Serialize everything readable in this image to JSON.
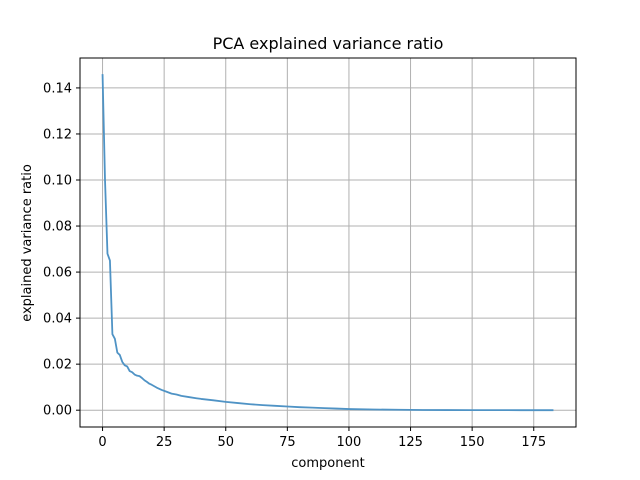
{
  "chart_data": {
    "type": "line",
    "title": "PCA explained variance ratio",
    "xlabel": "component",
    "ylabel": "explained variance ratio",
    "xlim": [
      -9.15,
      192.15
    ],
    "ylim": [
      -0.0073,
      0.153
    ],
    "xticks": [
      0,
      25,
      50,
      75,
      100,
      125,
      150,
      175
    ],
    "xtick_labels": [
      "0",
      "25",
      "50",
      "75",
      "100",
      "125",
      "150",
      "175"
    ],
    "yticks": [
      0.0,
      0.02,
      0.04,
      0.06,
      0.08,
      0.1,
      0.12,
      0.14
    ],
    "ytick_labels": [
      "0.00",
      "0.02",
      "0.04",
      "0.06",
      "0.08",
      "0.10",
      "0.12",
      "0.14"
    ],
    "grid": true,
    "line_color": "#4f93c5",
    "series": [
      {
        "x": [
          0,
          1,
          2,
          3,
          4,
          5,
          6,
          7,
          8,
          9,
          10,
          11,
          12,
          13,
          14,
          15,
          16,
          17,
          18,
          19,
          20,
          22,
          24,
          26,
          28,
          30,
          32,
          35,
          38,
          40,
          45,
          50,
          55,
          60,
          65,
          70,
          75,
          80,
          85,
          90,
          95,
          100,
          110,
          120,
          130,
          140,
          150,
          160,
          170,
          183
        ],
        "y": [
          0.146,
          0.1,
          0.068,
          0.065,
          0.033,
          0.031,
          0.025,
          0.024,
          0.021,
          0.0195,
          0.019,
          0.017,
          0.0165,
          0.0155,
          0.015,
          0.0148,
          0.014,
          0.013,
          0.0123,
          0.0115,
          0.011,
          0.0098,
          0.0088,
          0.008,
          0.0072,
          0.0068,
          0.0062,
          0.0057,
          0.0052,
          0.0049,
          0.0043,
          0.0036,
          0.0031,
          0.0026,
          0.0022,
          0.0019,
          0.0016,
          0.0013,
          0.0011,
          0.0009,
          0.0007,
          0.0005,
          0.0003,
          0.0002,
          0.0001,
          5e-05,
          3e-05,
          2e-05,
          1e-05,
          0.0
        ]
      }
    ]
  }
}
